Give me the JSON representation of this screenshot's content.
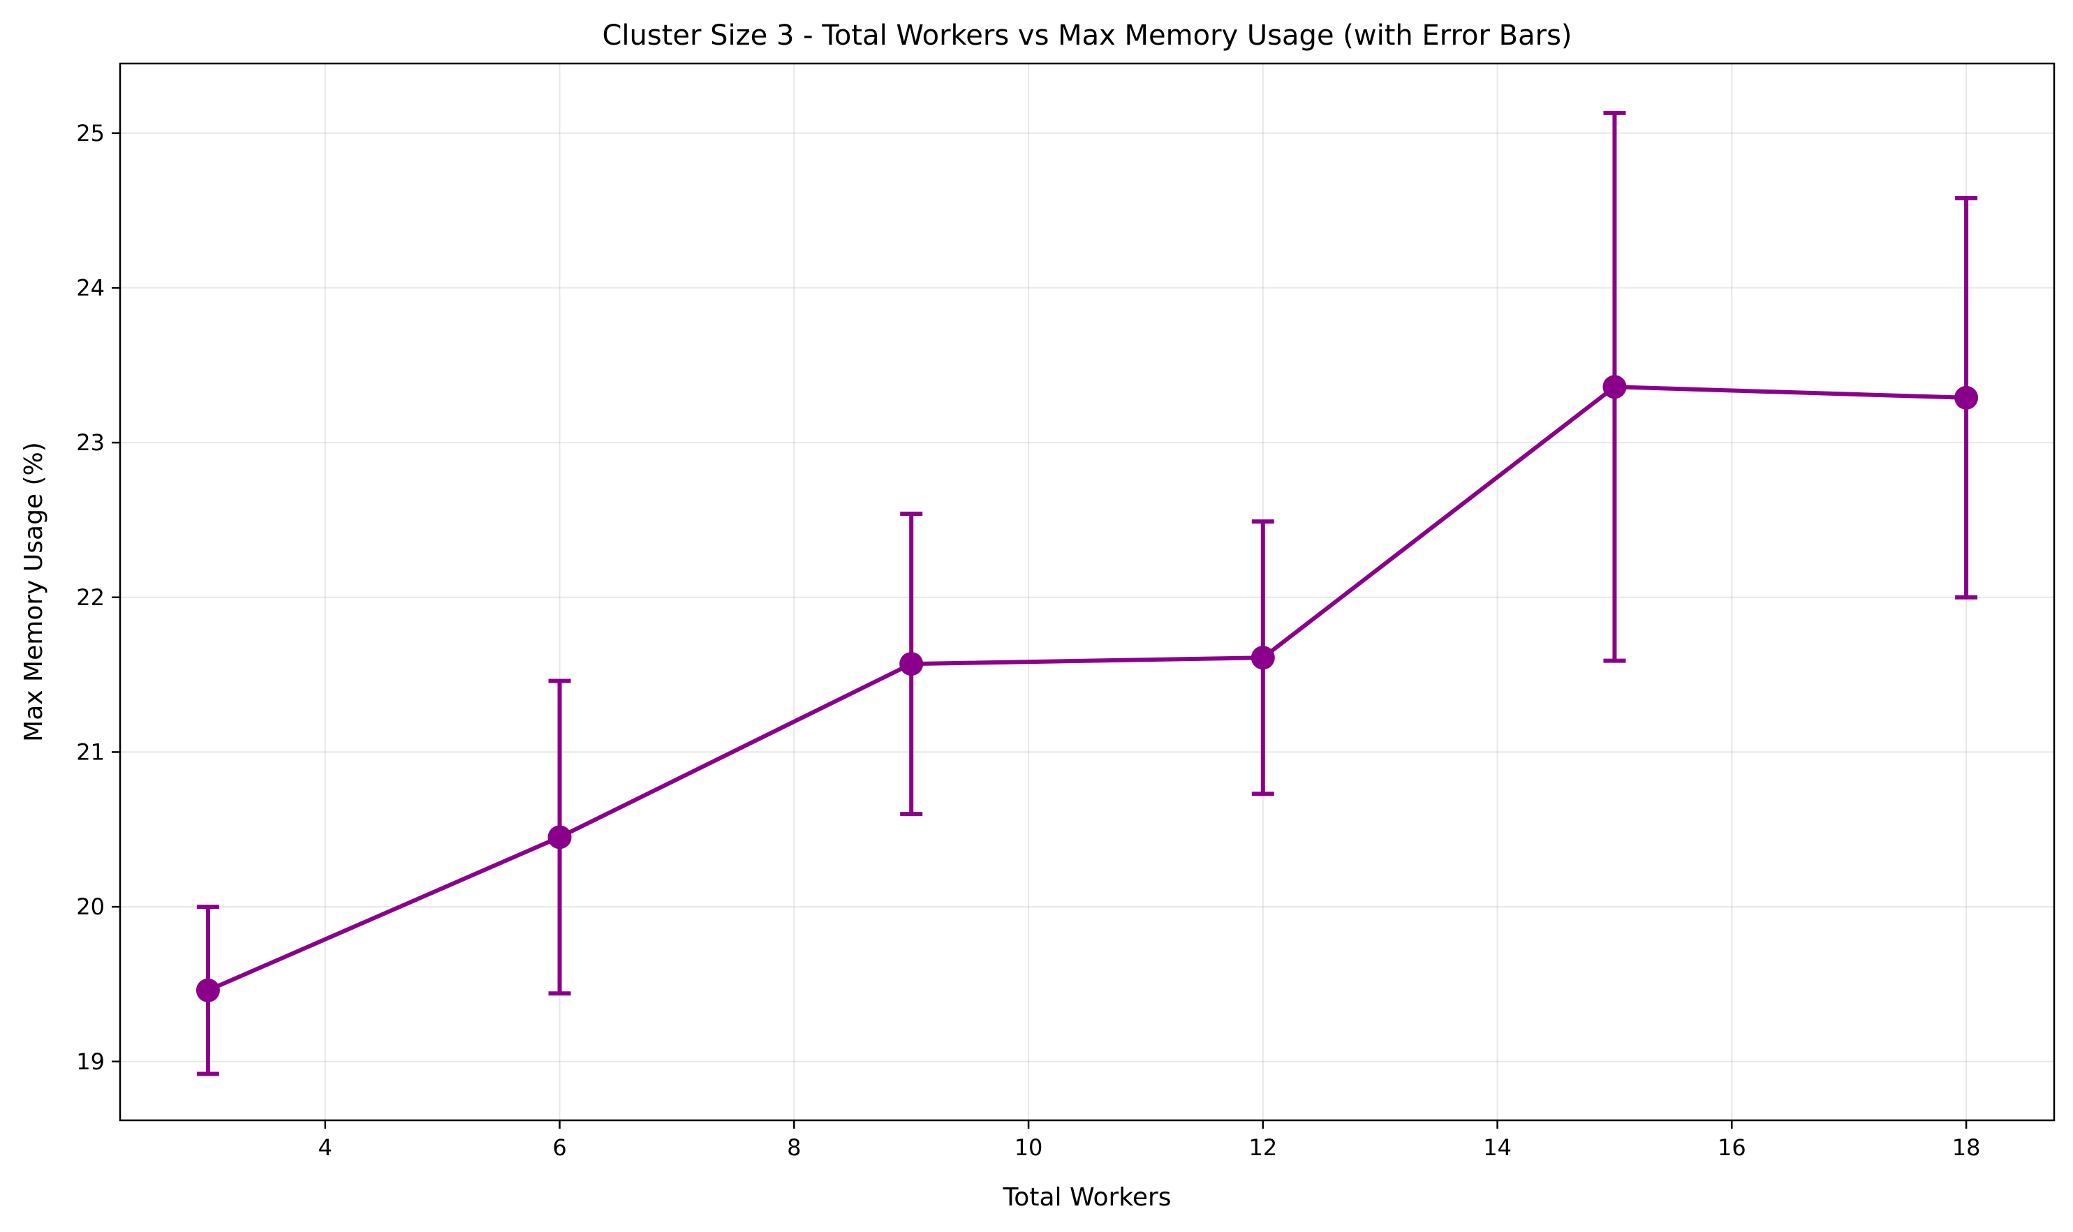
{
  "chart_data": {
    "type": "line",
    "title": "Cluster Size 3 - Total Workers vs Max Memory Usage (with Error Bars)",
    "xlabel": "Total Workers",
    "ylabel": "Max Memory Usage (%)",
    "xlim": [
      2.25,
      18.75
    ],
    "ylim": [
      18.62,
      25.45
    ],
    "xticks": [
      4,
      6,
      8,
      10,
      12,
      14,
      16,
      18
    ],
    "yticks": [
      19,
      20,
      21,
      22,
      23,
      24,
      25
    ],
    "grid": true,
    "legend": "none",
    "color": "#8B008B",
    "series": [
      {
        "x": [
          3,
          6,
          9,
          12,
          15,
          18
        ],
        "y": [
          19.46,
          20.45,
          21.57,
          21.61,
          23.36,
          23.29
        ],
        "error": [
          0.54,
          1.01,
          0.97,
          0.88,
          1.77,
          1.29
        ]
      }
    ]
  }
}
